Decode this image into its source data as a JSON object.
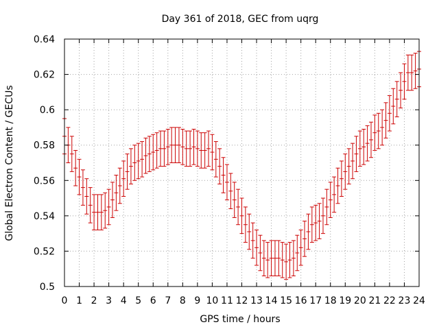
{
  "chart_data": {
    "type": "scatter",
    "title": "Day 361 of 2018, GEC from uqrg",
    "xlabel": "GPS time / hours",
    "ylabel": "Global Electron Content / GECUs",
    "xlim": [
      0,
      24
    ],
    "ylim": [
      0.5,
      0.64
    ],
    "xticks": [
      "0",
      "1",
      "2",
      "3",
      "4",
      "5",
      "6",
      "7",
      "8",
      "9",
      "10",
      "11",
      "12",
      "13",
      "14",
      "15",
      "16",
      "17",
      "18",
      "19",
      "20",
      "21",
      "22",
      "23",
      "24"
    ],
    "yticks": [
      "0.5",
      "0.52",
      "0.54",
      "0.56",
      "0.58",
      "0.6",
      "0.62",
      "0.64"
    ],
    "grid": true,
    "series": [
      {
        "color": "#cc0000",
        "marker": "errorbar",
        "x": [
          0,
          0.25,
          0.5,
          0.75,
          1,
          1.25,
          1.5,
          1.75,
          2,
          2.25,
          2.5,
          2.75,
          3,
          3.25,
          3.5,
          3.75,
          4,
          4.25,
          4.5,
          4.75,
          5,
          5.25,
          5.5,
          5.75,
          6,
          6.25,
          6.5,
          6.75,
          7,
          7.25,
          7.5,
          7.75,
          8,
          8.25,
          8.5,
          8.75,
          9,
          9.25,
          9.5,
          9.75,
          10,
          10.25,
          10.5,
          10.75,
          11,
          11.25,
          11.5,
          11.75,
          12,
          12.25,
          12.5,
          12.75,
          13,
          13.25,
          13.5,
          13.75,
          14,
          14.25,
          14.5,
          14.75,
          15,
          15.25,
          15.5,
          15.75,
          16,
          16.25,
          16.5,
          16.75,
          17,
          17.25,
          17.5,
          17.75,
          18,
          18.25,
          18.5,
          18.75,
          19,
          19.25,
          19.5,
          19.75,
          20,
          20.25,
          20.5,
          20.75,
          21,
          21.25,
          21.5,
          21.75,
          22,
          22.25,
          22.5,
          22.75,
          23,
          23.25,
          23.5,
          23.75,
          24
        ],
        "y": [
          0.585,
          0.58,
          0.575,
          0.567,
          0.562,
          0.556,
          0.551,
          0.546,
          0.542,
          0.542,
          0.542,
          0.543,
          0.545,
          0.549,
          0.553,
          0.557,
          0.561,
          0.565,
          0.568,
          0.57,
          0.571,
          0.572,
          0.574,
          0.575,
          0.576,
          0.577,
          0.578,
          0.578,
          0.579,
          0.58,
          0.58,
          0.58,
          0.579,
          0.578,
          0.578,
          0.579,
          0.578,
          0.577,
          0.577,
          0.578,
          0.576,
          0.572,
          0.568,
          0.563,
          0.559,
          0.554,
          0.549,
          0.545,
          0.54,
          0.535,
          0.531,
          0.526,
          0.522,
          0.519,
          0.516,
          0.515,
          0.516,
          0.516,
          0.516,
          0.515,
          0.514,
          0.515,
          0.516,
          0.519,
          0.522,
          0.527,
          0.531,
          0.535,
          0.536,
          0.537,
          0.54,
          0.545,
          0.549,
          0.552,
          0.557,
          0.561,
          0.565,
          0.568,
          0.571,
          0.575,
          0.578,
          0.579,
          0.581,
          0.583,
          0.587,
          0.588,
          0.59,
          0.594,
          0.598,
          0.602,
          0.606,
          0.611,
          0.616,
          0.621,
          0.621,
          0.622,
          0.623
        ],
        "error": 0.01
      }
    ]
  }
}
